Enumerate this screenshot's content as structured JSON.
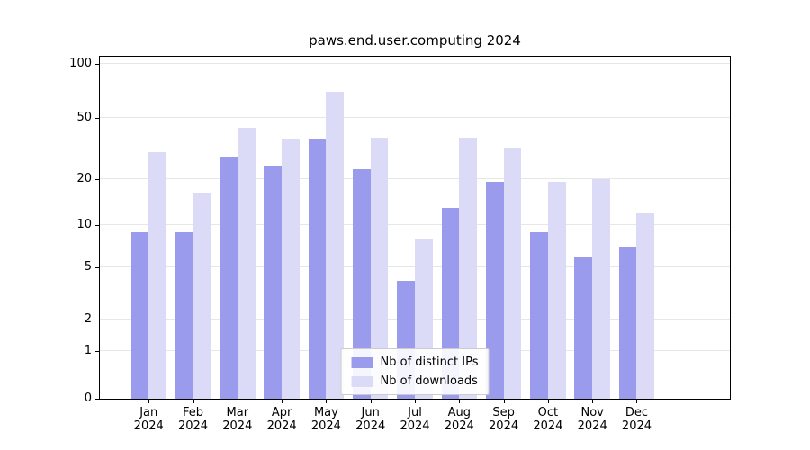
{
  "chart_data": {
    "type": "bar",
    "title": "paws.end.user.computing 2024",
    "year": "2024",
    "categories": [
      "Jan",
      "Feb",
      "Mar",
      "Apr",
      "May",
      "Jun",
      "Jul",
      "Aug",
      "Sep",
      "Oct",
      "Nov",
      "Dec"
    ],
    "series": [
      {
        "name": "Nb of distinct IPs",
        "color": "#9b9bee",
        "values": [
          9,
          9,
          28,
          24,
          36,
          23,
          4,
          13,
          19,
          9,
          6,
          7
        ]
      },
      {
        "name": "Nb of downloads",
        "color": "#dbdbf8",
        "values": [
          30,
          16,
          43,
          36,
          70,
          37,
          8,
          37,
          32,
          19,
          20,
          12
        ]
      }
    ],
    "yticks": [
      0,
      1,
      2,
      5,
      10,
      20,
      50,
      100
    ],
    "yscale": "symlog",
    "ylim": [
      0,
      110
    ],
    "grid": true,
    "legend_position": "lower center",
    "xlabel": "",
    "ylabel": ""
  }
}
